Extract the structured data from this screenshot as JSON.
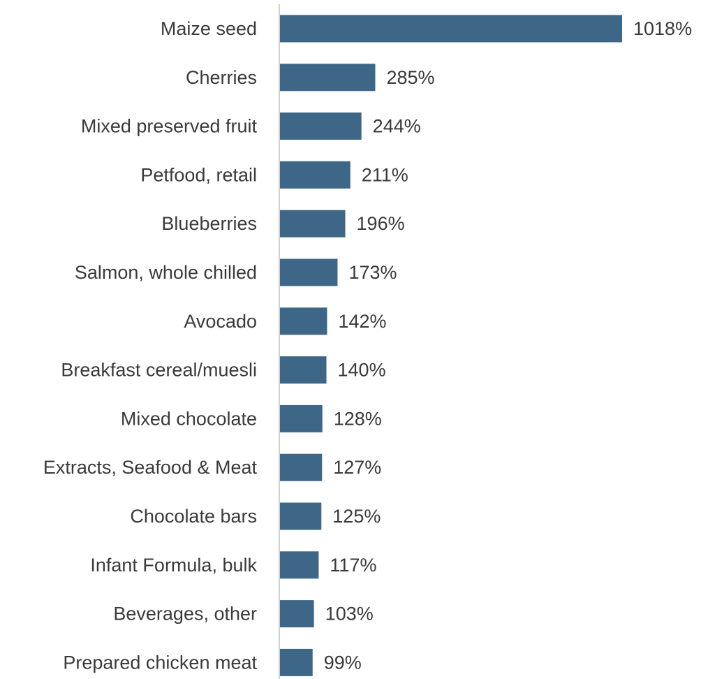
{
  "chart_data": {
    "type": "bar",
    "orientation": "horizontal",
    "categories": [
      "Maize seed",
      "Cherries",
      "Mixed preserved fruit",
      "Petfood, retail",
      "Blueberries",
      "Salmon, whole chilled",
      "Avocado",
      "Breakfast cereal/muesli",
      "Mixed chocolate",
      "Extracts, Seafood & Meat",
      "Chocolate bars",
      "Infant Formula, bulk",
      "Beverages, other",
      "Prepared chicken meat"
    ],
    "values": [
      1018,
      285,
      244,
      211,
      196,
      173,
      142,
      140,
      128,
      127,
      125,
      117,
      103,
      99
    ],
    "value_labels": [
      "1018%",
      "285%",
      "244%",
      "211%",
      "196%",
      "173%",
      "142%",
      "140%",
      "128%",
      "127%",
      "125%",
      "117%",
      "103%",
      "99%"
    ],
    "title": "",
    "xlabel": "",
    "ylabel": "",
    "xlim": [
      0,
      1018
    ],
    "grid": false,
    "legend": "none",
    "bar_color": "#3e6787",
    "axis_color": "#d0d0d0",
    "text_color": "#3a3a3a"
  }
}
